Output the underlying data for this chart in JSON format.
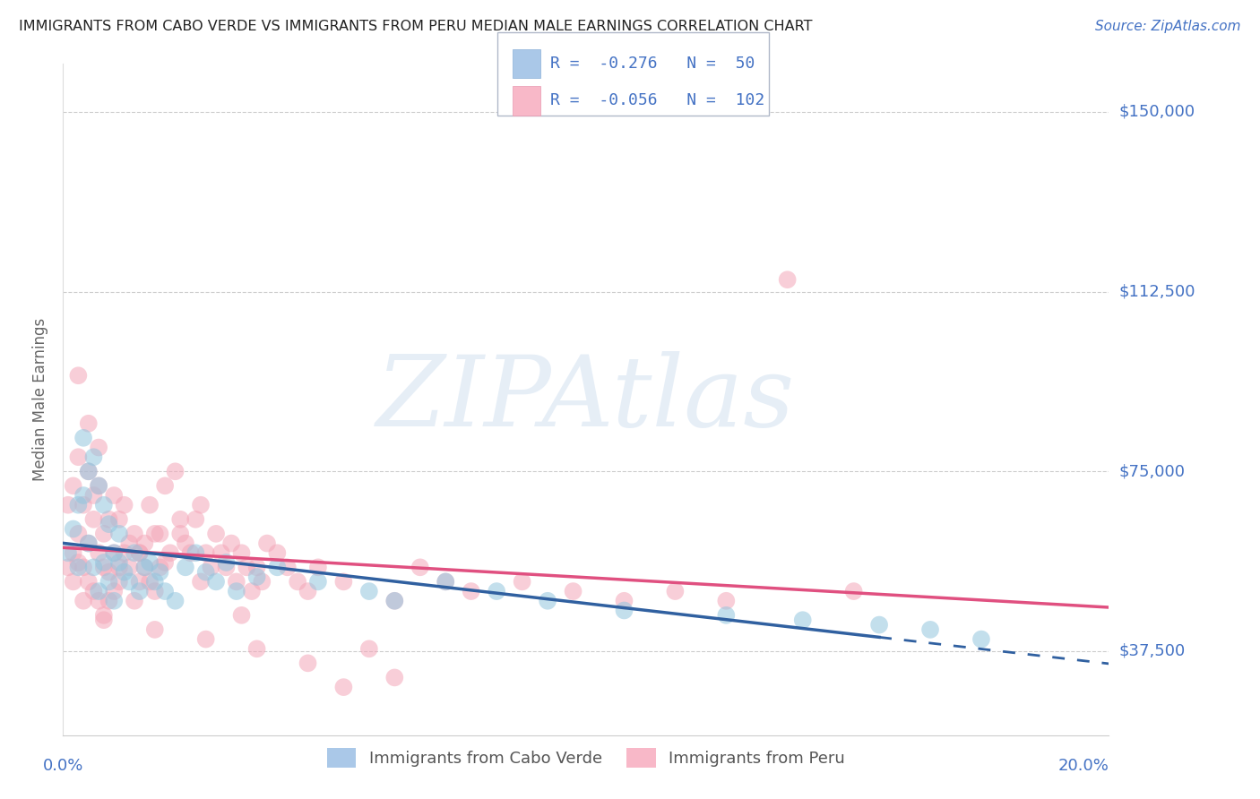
{
  "title": "IMMIGRANTS FROM CABO VERDE VS IMMIGRANTS FROM PERU MEDIAN MALE EARNINGS CORRELATION CHART",
  "source": "Source: ZipAtlas.com",
  "ylabel": "Median Male Earnings",
  "xlim": [
    0.0,
    0.205
  ],
  "ylim": [
    20000,
    160000
  ],
  "yticks": [
    37500,
    75000,
    112500,
    150000
  ],
  "ytick_labels": [
    "$37,500",
    "$75,000",
    "$112,500",
    "$150,000"
  ],
  "xticks": [
    0.0,
    0.05,
    0.1,
    0.15,
    0.2
  ],
  "watermark": "ZIPAtlas",
  "legend1_label": "Immigrants from Cabo Verde",
  "legend2_label": "Immigrants from Peru",
  "blue_scatter_color": "#92c5de",
  "pink_scatter_color": "#f4a6b8",
  "blue_line_color": "#3060a0",
  "pink_line_color": "#e05080",
  "title_color": "#222222",
  "axis_label_color": "#666666",
  "tick_label_color": "#4472c4",
  "grid_color": "#cccccc",
  "background_color": "#ffffff",
  "legend_text_color": "#333333",
  "legend_r_color": "#4472c4",
  "cabo_verde_x": [
    0.001,
    0.002,
    0.003,
    0.003,
    0.004,
    0.004,
    0.005,
    0.005,
    0.006,
    0.006,
    0.007,
    0.007,
    0.008,
    0.008,
    0.009,
    0.009,
    0.01,
    0.01,
    0.011,
    0.011,
    0.012,
    0.013,
    0.014,
    0.015,
    0.016,
    0.017,
    0.018,
    0.019,
    0.02,
    0.022,
    0.024,
    0.026,
    0.028,
    0.03,
    0.032,
    0.034,
    0.038,
    0.042,
    0.05,
    0.06,
    0.065,
    0.075,
    0.085,
    0.095,
    0.11,
    0.13,
    0.145,
    0.16,
    0.17,
    0.18
  ],
  "cabo_verde_y": [
    58000,
    63000,
    68000,
    55000,
    82000,
    70000,
    75000,
    60000,
    78000,
    55000,
    72000,
    50000,
    68000,
    56000,
    64000,
    52000,
    58000,
    48000,
    62000,
    56000,
    54000,
    52000,
    58000,
    50000,
    55000,
    56000,
    52000,
    54000,
    50000,
    48000,
    55000,
    58000,
    54000,
    52000,
    56000,
    50000,
    53000,
    55000,
    52000,
    50000,
    48000,
    52000,
    50000,
    48000,
    46000,
    45000,
    44000,
    43000,
    42000,
    40000
  ],
  "peru_x": [
    0.001,
    0.001,
    0.002,
    0.002,
    0.002,
    0.003,
    0.003,
    0.003,
    0.004,
    0.004,
    0.004,
    0.005,
    0.005,
    0.005,
    0.006,
    0.006,
    0.006,
    0.007,
    0.007,
    0.007,
    0.008,
    0.008,
    0.008,
    0.009,
    0.009,
    0.009,
    0.01,
    0.01,
    0.01,
    0.011,
    0.011,
    0.012,
    0.012,
    0.013,
    0.013,
    0.014,
    0.014,
    0.015,
    0.015,
    0.016,
    0.016,
    0.017,
    0.017,
    0.018,
    0.018,
    0.019,
    0.02,
    0.02,
    0.021,
    0.022,
    0.023,
    0.024,
    0.025,
    0.026,
    0.027,
    0.028,
    0.029,
    0.03,
    0.031,
    0.032,
    0.033,
    0.034,
    0.035,
    0.036,
    0.037,
    0.038,
    0.039,
    0.04,
    0.042,
    0.044,
    0.046,
    0.048,
    0.05,
    0.055,
    0.06,
    0.065,
    0.07,
    0.075,
    0.08,
    0.09,
    0.1,
    0.11,
    0.12,
    0.13,
    0.055,
    0.065,
    0.048,
    0.038,
    0.028,
    0.018,
    0.008,
    0.005,
    0.003,
    0.007,
    0.011,
    0.015,
    0.019,
    0.023,
    0.027,
    0.035,
    0.142,
    0.155
  ],
  "peru_y": [
    55000,
    68000,
    58000,
    72000,
    52000,
    62000,
    56000,
    78000,
    68000,
    55000,
    48000,
    75000,
    60000,
    52000,
    70000,
    65000,
    50000,
    58000,
    72000,
    48000,
    62000,
    55000,
    44000,
    65000,
    54000,
    48000,
    70000,
    58000,
    50000,
    65000,
    52000,
    68000,
    58000,
    60000,
    55000,
    62000,
    48000,
    58000,
    52000,
    60000,
    55000,
    68000,
    52000,
    62000,
    50000,
    55000,
    72000,
    56000,
    58000,
    75000,
    62000,
    60000,
    58000,
    65000,
    52000,
    58000,
    55000,
    62000,
    58000,
    55000,
    60000,
    52000,
    58000,
    55000,
    50000,
    55000,
    52000,
    60000,
    58000,
    55000,
    52000,
    50000,
    55000,
    52000,
    38000,
    48000,
    55000,
    52000,
    50000,
    52000,
    50000,
    48000,
    50000,
    48000,
    30000,
    32000,
    35000,
    38000,
    40000,
    42000,
    45000,
    85000,
    95000,
    80000,
    55000,
    58000,
    62000,
    65000,
    68000,
    45000,
    115000,
    50000
  ]
}
